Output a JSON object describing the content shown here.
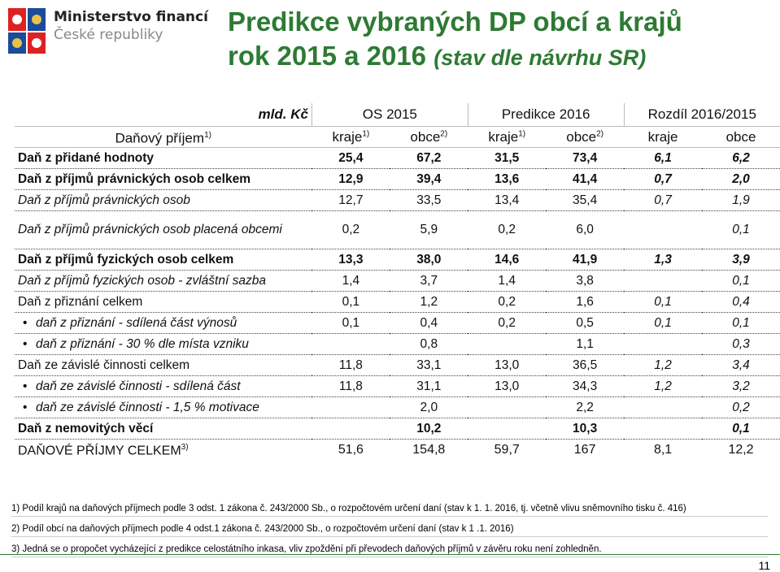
{
  "header": {
    "ministry": [
      "Ministerstvo financí",
      "České republiky"
    ],
    "title": "Predikce vybraných DP obcí a krajů",
    "title_line2": "rok 2015 a 2016",
    "title_note": "(stav dle návrhu SR)"
  },
  "table": {
    "unit": "mld. Kč",
    "groups": [
      "OS 2015",
      "Predikce 2016",
      "Rozdíl 2016/2015"
    ],
    "columns": [
      {
        "text": "Daňový příjem",
        "sup": "1)"
      },
      {
        "text": "kraje",
        "sup": "1)"
      },
      {
        "text": "obce",
        "sup": "2)"
      },
      {
        "text": "kraje",
        "sup": "1)"
      },
      {
        "text": "obce",
        "sup": "2)"
      },
      {
        "text": "kraje"
      },
      {
        "text": "obce"
      }
    ],
    "rows": [
      {
        "label": "Daň z přidané hodnoty",
        "kind": "bold",
        "values": [
          "25,4",
          "67,2",
          "31,5",
          "73,4",
          "6,1",
          "6,2"
        ]
      },
      {
        "label": "Daň z příjmů právnických osob celkem",
        "kind": "bold",
        "values": [
          "12,9",
          "39,4",
          "13,6",
          "41,4",
          "0,7",
          "2,0"
        ]
      },
      {
        "label": "Daň z příjmů právnických osob",
        "kind": "italic",
        "values": [
          "12,7",
          "33,5",
          "13,4",
          "35,4",
          "0,7",
          "1,9"
        ]
      },
      {
        "label": "Daň z příjmů právnických osob placená obcemi",
        "kind": "italic",
        "values": [
          "0,2",
          "5,9",
          "0,2",
          "6,0",
          null,
          "0,1"
        ]
      },
      {
        "label": "Daň z příjmů fyzických osob celkem",
        "kind": "bold",
        "values": [
          "13,3",
          "38,0",
          "14,6",
          "41,9",
          "1,3",
          "3,9"
        ]
      },
      {
        "label": "Daň z příjmů fyzických osob - zvláštní sazba",
        "kind": "italic",
        "values": [
          "1,4",
          "3,7",
          "1,4",
          "3,8",
          null,
          "0,1"
        ]
      },
      {
        "label": "Daň z přiznání celkem",
        "kind": "normal",
        "values": [
          "0,1",
          "1,2",
          "0,2",
          "1,6",
          "0,1",
          "0,4"
        ]
      },
      {
        "label": "daň z přiznání - sdílená část výnosů",
        "kind": "bullet",
        "values": [
          "0,1",
          "0,4",
          "0,2",
          "0,5",
          "0,1",
          "0,1"
        ]
      },
      {
        "label": "daň z přiznání - 30 % dle místa vzniku",
        "kind": "bullet",
        "values": [
          null,
          "0,8",
          null,
          "1,1",
          null,
          "0,3"
        ]
      },
      {
        "label": "Daň ze závislé činnosti celkem",
        "kind": "normal",
        "values": [
          "11,8",
          "33,1",
          "13,0",
          "36,5",
          "1,2",
          "3,4"
        ]
      },
      {
        "label": "daň ze závislé činnosti - sdílená část",
        "kind": "bullet",
        "values": [
          "11,8",
          "31,1",
          "13,0",
          "34,3",
          "1,2",
          "3,2"
        ]
      },
      {
        "label": "daň ze závislé činnosti - 1,5 % motivace",
        "kind": "bullet",
        "values": [
          null,
          "2,0",
          null,
          "2,2",
          null,
          "0,2"
        ]
      },
      {
        "label": "Daň z nemovitých věcí",
        "kind": "bold",
        "values": [
          null,
          "10,2",
          null,
          "10,3",
          null,
          "0,1"
        ]
      },
      {
        "label": "DAŇOVÉ PŘÍJMY CELKEM",
        "sup": "3)",
        "kind": "total",
        "values": [
          "51,6",
          "154,8",
          "59,7",
          "167",
          "8,1",
          "12,2"
        ]
      }
    ]
  },
  "footnotes": [
    "1) Podíl krajů na daňových příjmech podle 3 odst. 1 zákona č. 243/2000 Sb., o rozpočtovém určení daní (stav k 1. 1. 2016, tj. včetně vlivu sněmovního tisku č. 416)",
    "2) Podíl obcí na daňových příjmech podle 4 odst.1 zákona č. 243/2000 Sb., o rozpočtovém určení daní (stav k 1 .1. 2016)",
    "3) Jedná se o propočet vycházející z predikce celostátního inkasa, vliv zpoždění při převodech daňových příjmů v závěru roku není zohledněn."
  ],
  "page_number": "11"
}
